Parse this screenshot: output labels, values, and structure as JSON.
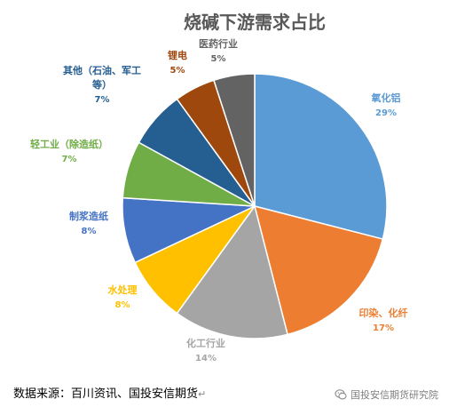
{
  "chart_data": {
    "type": "pie",
    "title": "烧碱下游需求占比",
    "slices": [
      {
        "name": "氧化铝",
        "value": 29,
        "label": "29%",
        "color": "#5B9BD5"
      },
      {
        "name": "印染、化纤",
        "value": 17,
        "label": "17%",
        "color": "#ED7D31"
      },
      {
        "name": "化工行业",
        "value": 14,
        "label": "14%",
        "color": "#A5A5A5"
      },
      {
        "name": "水处理",
        "value": 8,
        "label": "8%",
        "color": "#FFC000"
      },
      {
        "name": "制浆造纸",
        "value": 8,
        "label": "8%",
        "color": "#4472C4"
      },
      {
        "name": "轻工业（除造纸）",
        "value": 7,
        "label": "7%",
        "color": "#70AD47"
      },
      {
        "name": "其他（石油、军工等）",
        "value": 7,
        "label": "7%",
        "color": "#255E91"
      },
      {
        "name": "锂电",
        "value": 5,
        "label": "5%",
        "color": "#9E480E"
      },
      {
        "name": "医药行业",
        "value": 5,
        "label": "5%",
        "color": "#636363"
      }
    ],
    "start_angle": 0,
    "direction": "clockwise"
  },
  "footer": {
    "source": "数据来源：百川资讯、国投安信期货",
    "source_mark": "↵",
    "watermark": "国投安信期货研究院"
  }
}
